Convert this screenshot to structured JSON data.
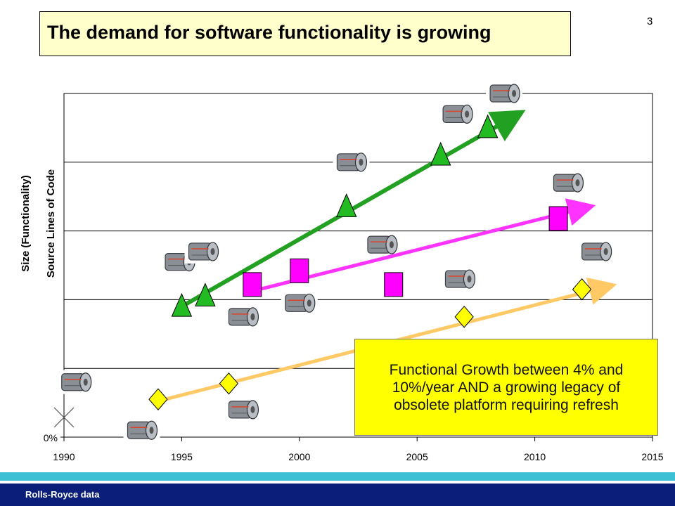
{
  "slide": {
    "title": "The demand for software functionality is growing",
    "page_number": "3",
    "footer": "Rolls-Royce data",
    "callout": "Functional Growth between 4% and 10%/year  AND a growing legacy of obsolete platform requiring refresh"
  },
  "colors": {
    "title_bg": "#ffffcc",
    "green_series": "#22bb22",
    "magenta_series": "#ff00ff",
    "yellow_series": "#ffff00",
    "green_trend": "#22a022",
    "magenta_trend": "#ff33ff",
    "orange_trend": "#ffc966",
    "callout_bg": "#ffff00",
    "footer_band": "#0b1f7a",
    "footer_stripe": "#3cc0d6"
  },
  "chart_data": {
    "type": "scatter",
    "xlabel": "",
    "ylabel_lines": [
      "Size (Functionality)",
      "Source Lines of Code"
    ],
    "xlim": [
      1990,
      2015
    ],
    "ylim": [
      0,
      5
    ],
    "x_ticks": [
      "1990",
      "1995",
      "2000",
      "2005",
      "2010",
      "2015"
    ],
    "y_tick_labels": [
      "0%"
    ],
    "grid": true,
    "series": [
      {
        "marker": "triangle",
        "points": [
          [
            1995,
            1.9
          ],
          [
            1996,
            2.05
          ],
          [
            2002,
            3.35
          ],
          [
            2006,
            4.1
          ],
          [
            2008,
            4.5
          ]
        ],
        "trend": [
          [
            1995,
            1.9
          ],
          [
            2009.3,
            4.7
          ]
        ]
      },
      {
        "marker": "square",
        "points": [
          [
            1998,
            2.22
          ],
          [
            2000,
            2.42
          ],
          [
            2004,
            2.22
          ],
          [
            2011,
            3.18
          ]
        ],
        "trend": [
          [
            1998.3,
            2.15
          ],
          [
            2012.3,
            3.35
          ]
        ]
      },
      {
        "marker": "diamond",
        "points": [
          [
            1994,
            0.55
          ],
          [
            1997,
            0.78
          ],
          [
            2007,
            1.75
          ],
          [
            2012,
            2.15
          ]
        ],
        "trend": [
          [
            1994.3,
            0.55
          ],
          [
            2013.2,
            2.2
          ]
        ]
      }
    ],
    "engine_images": [
      [
        1990.5,
        0.8
      ],
      [
        1993.3,
        0.1
      ],
      [
        1994.9,
        2.55
      ],
      [
        1995.9,
        2.7
      ],
      [
        1997.6,
        1.75
      ],
      [
        2000,
        1.95
      ],
      [
        2002.2,
        4.0
      ],
      [
        2003.5,
        2.8
      ],
      [
        2006.7,
        4.7
      ],
      [
        2008.7,
        5.0
      ],
      [
        1997.6,
        0.4
      ],
      [
        2006.8,
        2.3
      ],
      [
        2011.4,
        3.7
      ],
      [
        2012.6,
        2.7
      ]
    ]
  }
}
